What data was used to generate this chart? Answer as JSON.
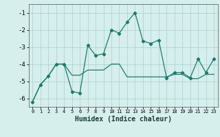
{
  "xlabel": "Humidex (Indice chaleur)",
  "x_values": [
    0,
    1,
    2,
    3,
    4,
    5,
    6,
    7,
    8,
    9,
    10,
    11,
    12,
    13,
    14,
    15,
    16,
    17,
    18,
    19,
    20,
    21,
    22,
    23
  ],
  "line1_y": [
    -6.2,
    -5.2,
    -4.7,
    -4.0,
    -4.0,
    -5.6,
    -5.7,
    -2.9,
    -3.5,
    -3.4,
    -2.0,
    -2.2,
    -1.55,
    -1.0,
    -2.65,
    -2.8,
    -2.6,
    -4.8,
    -4.5,
    -4.5,
    -4.8,
    -3.7,
    -4.5,
    -3.7
  ],
  "line2_y": [
    -6.2,
    -5.2,
    -4.7,
    -4.0,
    -4.0,
    -4.65,
    -4.65,
    -4.35,
    -4.35,
    -4.35,
    -4.0,
    -4.0,
    -4.75,
    -4.75,
    -4.75,
    -4.75,
    -4.75,
    -4.75,
    -4.6,
    -4.6,
    -4.85,
    -4.85,
    -4.6,
    -4.6
  ],
  "line_color": "#1a7a6e",
  "bg_color": "#d6eeec",
  "grid_color": "#aed4d1",
  "ylim": [
    -6.5,
    -0.5
  ],
  "xlim": [
    -0.5,
    23.5
  ],
  "yticks": [
    -6,
    -5,
    -4,
    -3,
    -2,
    -1
  ],
  "xticks": [
    0,
    1,
    2,
    3,
    4,
    5,
    6,
    7,
    8,
    9,
    10,
    11,
    12,
    13,
    14,
    15,
    16,
    17,
    18,
    19,
    20,
    21,
    22,
    23
  ]
}
